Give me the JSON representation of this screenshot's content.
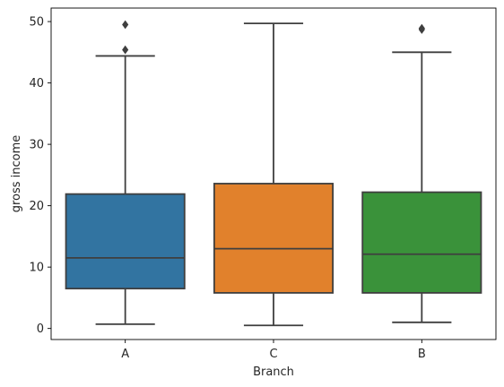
{
  "chart_data": {
    "type": "box",
    "title": "",
    "xlabel": "Branch",
    "ylabel": "gross income",
    "categories": [
      "A",
      "C",
      "B"
    ],
    "ylim": [
      -1.8,
      52.2
    ],
    "yticks": [
      0,
      10,
      20,
      30,
      40,
      50
    ],
    "grid": false,
    "boxes": [
      {
        "category": "A",
        "color": "#3274a1",
        "whisker_low": 0.7,
        "q1": 6.5,
        "median": 11.5,
        "q3": 21.9,
        "whisker_high": 44.4,
        "outliers": [
          45.4,
          49.5
        ]
      },
      {
        "category": "C",
        "color": "#e1812c",
        "whisker_low": 0.5,
        "q1": 5.8,
        "median": 13.0,
        "q3": 23.6,
        "whisker_high": 49.7,
        "outliers": []
      },
      {
        "category": "B",
        "color": "#3a923a",
        "whisker_low": 1.0,
        "q1": 5.8,
        "median": 12.1,
        "q3": 22.2,
        "whisker_high": 45.0,
        "outliers": [
          48.7,
          48.9
        ]
      }
    ]
  }
}
